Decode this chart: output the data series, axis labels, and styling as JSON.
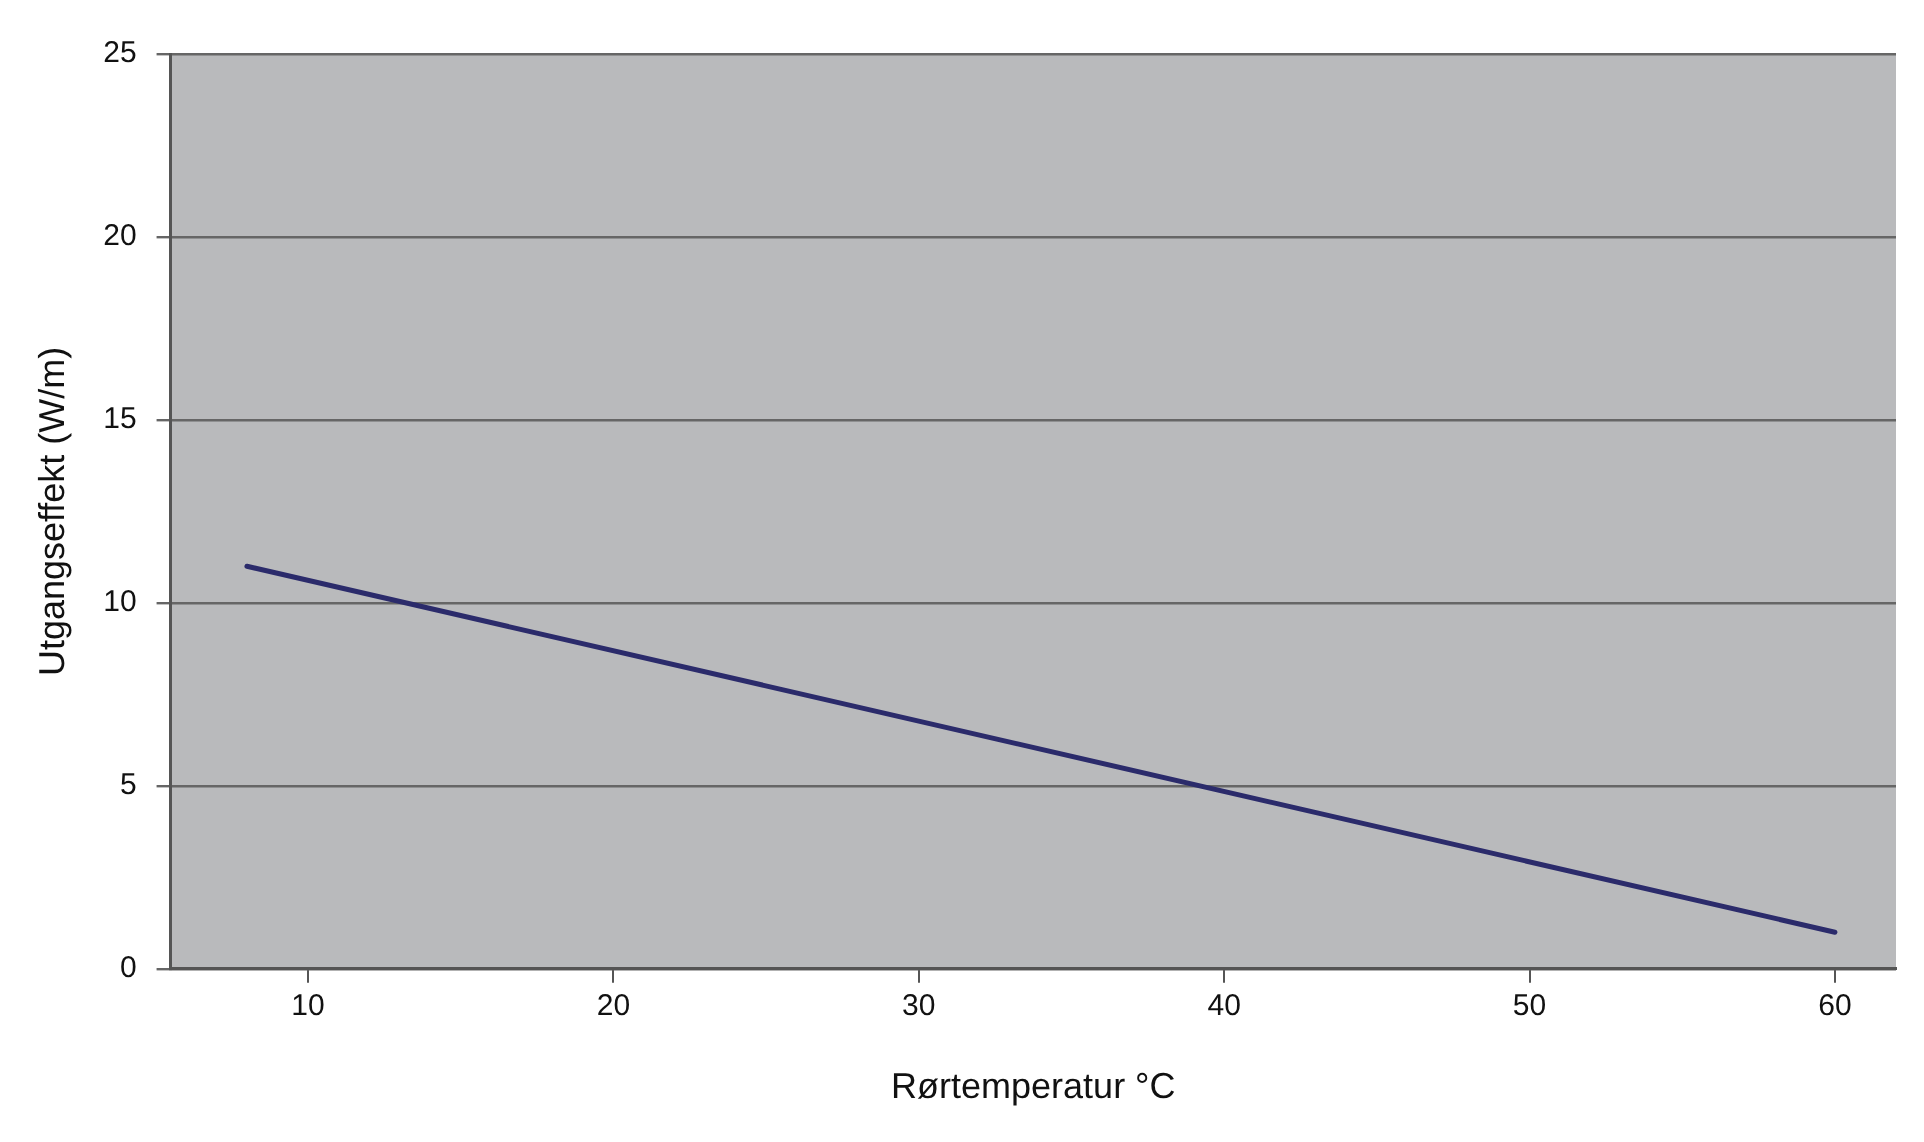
{
  "chart_data": {
    "type": "line",
    "xlabel": "Rørtemperatur °C",
    "ylabel": "Utgangseffekt (W/m)",
    "x": [
      8,
      60
    ],
    "series": [
      {
        "color": "#2b2b6b",
        "values": [
          11,
          1
        ]
      }
    ],
    "xlim": [
      5.5,
      62
    ],
    "xticks": [
      10,
      20,
      30,
      40,
      50,
      60
    ],
    "ylim": [
      0,
      25
    ],
    "yticks": [
      0,
      5,
      10,
      15,
      20,
      25
    ],
    "grid": "y",
    "legend": false,
    "marker": "none",
    "line_style": "solid"
  }
}
